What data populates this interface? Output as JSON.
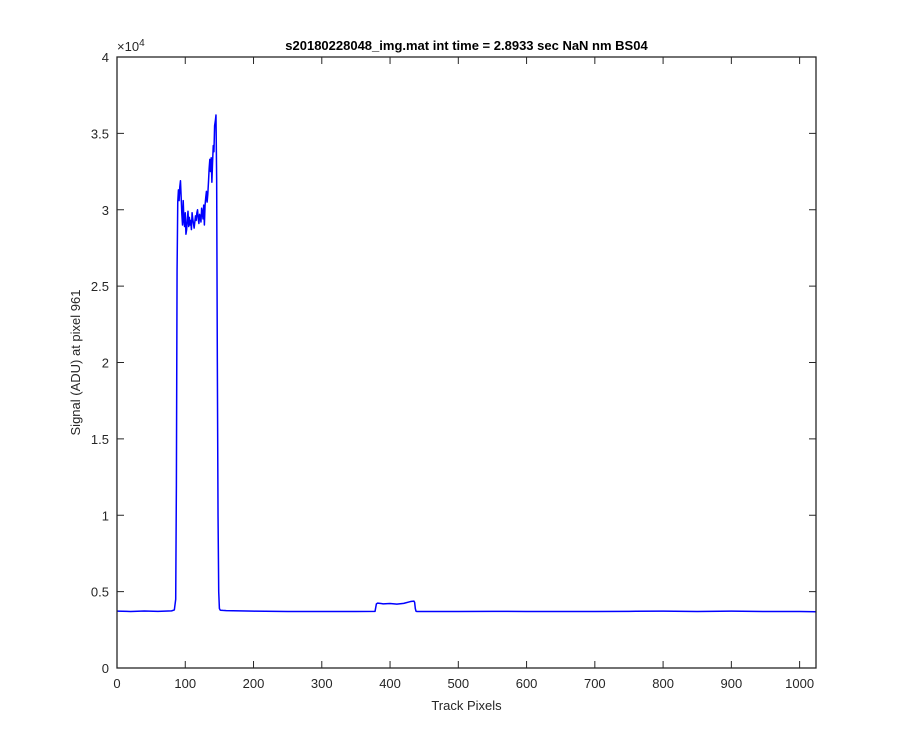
{
  "chart_data": {
    "type": "line",
    "title": "s20180228048_img.mat int time = 2.8933 sec  NaN nm BS04",
    "xlabel": "Track Pixels",
    "ylabel": "Signal (ADU) at pixel 961",
    "y_exponent_label": "×10",
    "y_exponent_power": "4",
    "xlim": [
      0,
      1024
    ],
    "ylim": [
      0,
      40000
    ],
    "x_ticks": [
      "0",
      "100",
      "200",
      "300",
      "400",
      "500",
      "600",
      "700",
      "800",
      "900",
      "1000"
    ],
    "y_ticks": [
      "0",
      "0.5",
      "1",
      "1.5",
      "2",
      "2.5",
      "3",
      "3.5",
      "4"
    ],
    "grid": false,
    "line_color": "#0000ff",
    "series": [
      {
        "x": [
          0,
          20,
          40,
          60,
          80,
          84,
          86,
          87,
          88,
          89,
          90,
          91,
          92,
          93,
          94,
          95,
          96,
          97,
          98,
          99,
          100,
          101,
          102,
          103,
          104,
          105,
          106,
          107,
          108,
          109,
          110,
          111,
          112,
          113,
          114,
          115,
          116,
          117,
          118,
          119,
          120,
          121,
          122,
          123,
          124,
          125,
          126,
          127,
          128,
          129,
          130,
          131,
          132,
          133,
          134,
          135,
          136,
          137,
          138,
          139,
          140,
          141,
          142,
          143,
          144,
          145,
          146,
          147,
          148,
          149,
          150,
          151,
          152,
          155,
          160,
          180,
          200,
          250,
          300,
          350,
          378,
          380,
          382,
          390,
          400,
          410,
          420,
          430,
          435,
          436,
          437,
          438,
          439,
          440,
          450,
          500,
          550,
          600,
          650,
          700,
          750,
          800,
          850,
          900,
          950,
          1000,
          1024
        ],
        "y": [
          3720,
          3700,
          3730,
          3710,
          3740,
          3800,
          4500,
          12000,
          26000,
          30500,
          31300,
          30600,
          31500,
          31900,
          30800,
          29700,
          29000,
          30600,
          29300,
          28900,
          29800,
          28400,
          28700,
          29400,
          29900,
          28900,
          29500,
          29000,
          29300,
          28700,
          29800,
          29400,
          29100,
          28800,
          29200,
          29600,
          29300,
          29800,
          30000,
          29400,
          29100,
          29700,
          29500,
          29200,
          30100,
          29800,
          29400,
          30300,
          29000,
          30300,
          30800,
          31200,
          30500,
          31000,
          31800,
          32700,
          33300,
          32500,
          33400,
          31800,
          33100,
          34200,
          33800,
          35500,
          35800,
          36200,
          32000,
          20000,
          10000,
          5000,
          3900,
          3800,
          3780,
          3770,
          3760,
          3740,
          3720,
          3700,
          3700,
          3700,
          3710,
          4200,
          4250,
          4200,
          4220,
          4180,
          4230,
          4350,
          4380,
          4300,
          3900,
          3720,
          3700,
          3700,
          3700,
          3700,
          3710,
          3700,
          3700,
          3700,
          3710,
          3720,
          3700,
          3720,
          3700,
          3700,
          3680
        ]
      }
    ]
  }
}
